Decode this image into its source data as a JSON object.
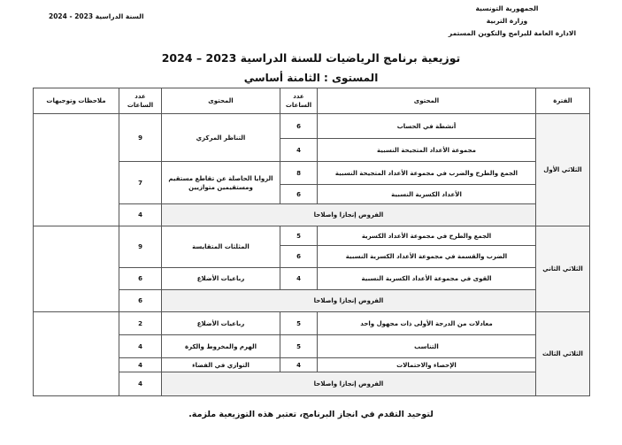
{
  "header": {
    "right_lines": [
      "الجمهورية التونسية",
      "وزارة التربية",
      "الادارة العامة للبرامج والتكوين المستمر"
    ],
    "school_year": "السنة الدراسية 2023 - 2024"
  },
  "title": "توزيعية برنامج الرياضيات للسنة الدراسية 2023 – 2024",
  "subtitle": "المستوى : الثامنة أساسي",
  "table": {
    "columns": [
      "الفترة",
      "المحتوى",
      "عدد الساعات",
      "المحتوى",
      "عدد الساعات",
      "ملاحظات وتوجيهات"
    ],
    "periods": [
      {
        "name": "الثلاثي الأول",
        "rows": [
          {
            "content1": "أنشطة في الحساب",
            "hours1": "6",
            "content2": "التناظر المركزي",
            "hours2": "9",
            "span": 2
          },
          {
            "content1": "مجموعة الأعداد المتجيحة النسبية",
            "hours1": "4"
          },
          {
            "content1": "الجمع والطرح والضرب في مجموعة الأعداد المتجيحة النسبية",
            "hours1": "8",
            "content2": "الزوايا الحاصلة عن تقاطع مستقيم ومستقيمين متوازيين",
            "hours2": "7",
            "span": 2
          },
          {
            "content1": "الأعداد الكسرية النسبية",
            "hours1": "6"
          }
        ],
        "exams": {
          "label": "الفروض إنجازا واصلاحا",
          "hours": "4"
        }
      },
      {
        "name": "الثلاثي الثاني",
        "rows": [
          {
            "content1": "الجمع والطرح في مجموعة الأعداد الكسرية",
            "hours1": "5",
            "content2": "المثلثات المتقايسة",
            "hours2": "9",
            "span": 2
          },
          {
            "content1": "الضرب والقسمة في مجموعة الأعداد الكسرية النسبية",
            "hours1": "6"
          },
          {
            "content1": "القوى في مجموعة الأعداد الكسرية النسبية",
            "hours1": "4",
            "content2": "رباعيات الأضلاع",
            "hours2": "6",
            "span": 1
          }
        ],
        "exams": {
          "label": "الفروض إنجازا واصلاحا",
          "hours": "6"
        }
      },
      {
        "name": "الثلاثي الثالث",
        "rows": [
          {
            "content1": "معادلات من الدرجة الأولى ذات مجهول واحد",
            "hours1": "5",
            "content2": "رباعيات الأضلاع",
            "hours2": "2",
            "span": 1
          },
          {
            "content1": "التناسب",
            "hours1": "5",
            "content2": "الهرم والمخروط والكرة",
            "hours2": "4",
            "span": 1
          },
          {
            "content1": "الإحصاء والاحتمالات",
            "hours1": "4",
            "content2": "التوازي في الفضاء",
            "hours2": "4",
            "span": 1
          }
        ],
        "exams": {
          "label": "الفروض إنجازا واصلاحا",
          "hours": "4"
        }
      }
    ]
  },
  "footer": "لتوحيد التقدم في انجاز البرنامج، تعتبر هذه التوزيعية ملزمة."
}
